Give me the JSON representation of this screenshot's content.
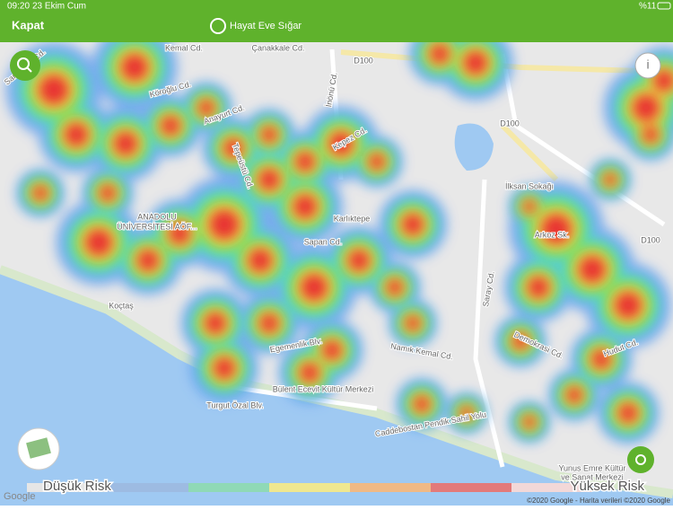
{
  "status": {
    "time": "09:20",
    "date": "23 Ekim Cum",
    "battery": "%11"
  },
  "nav": {
    "close": "Kapat",
    "title": "Hayat Eve Sığar"
  },
  "map": {
    "labels": [
      "Kemal Cd.",
      "Çanakkale Cd.",
      "İnönü Cd.",
      "Anayurt Cd.",
      "Köroğlu Cd.",
      "Karlıktepe",
      "ANADOLU",
      "ÜNİVERSİTESİ AÖF...",
      "Koçtaş",
      "Bülent Ecevit Kültür Merkezi",
      "Turgut Özal Blv.",
      "Egemenlik Blv.",
      "Namık Kemal Cd.",
      "D100",
      "D100",
      "D100",
      "İlksan Sokağı",
      "Saray Cd.",
      "Caddebostan Pendik Sahil Yolu",
      "Yunus Emre Kültür",
      "ve Sanat Merkezi",
      "Arkoz Sk.",
      "Demokrasi Cd.",
      "Hudut Cd.",
      "Sarayyolu Cd.",
      "Tepeüstü Cd.",
      "Sapan Cd.",
      "Kepez Cd."
    ]
  },
  "legend": {
    "low": "Düşük Risk",
    "high": "Yüksek Risk"
  },
  "footer": {
    "google": "Google",
    "copyright": "©2020 Google - Harita verileri ©2020 Google"
  }
}
